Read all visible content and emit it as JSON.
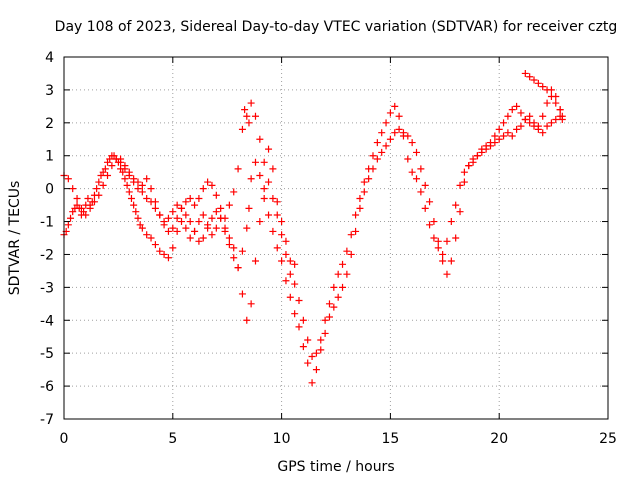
{
  "chart_data": {
    "type": "scatter",
    "title": "Day 108 of 2023, Sidereal Day-to-day VTEC variation (SDTVAR) for receiver cztg",
    "xlabel": "GPS time / hours",
    "ylabel": "SDTVAR / TECUs",
    "xlim": [
      0,
      25
    ],
    "ylim": [
      -7,
      4
    ],
    "xticks": [
      0,
      5,
      10,
      15,
      20,
      25
    ],
    "yticks": [
      -7,
      -6,
      -5,
      -4,
      -3,
      -2,
      -1,
      0,
      1,
      2,
      3,
      4
    ],
    "grid": true,
    "legend": "none",
    "marker": "+",
    "color": "#ff0000",
    "series": [
      {
        "x": [
          0.0,
          0.1,
          0.2,
          0.3,
          0.4,
          0.5,
          0.6,
          0.7,
          0.8,
          0.9,
          1.0,
          1.1,
          1.2,
          1.3,
          1.4,
          1.5,
          1.6,
          1.7,
          1.8,
          1.9,
          2.0,
          2.1,
          2.2,
          2.3,
          2.4,
          2.5,
          2.6,
          2.7,
          2.8,
          2.9,
          3.0,
          3.1,
          3.2,
          3.3,
          3.4,
          3.5,
          3.6,
          3.8,
          4.0,
          4.2,
          4.4,
          4.6,
          4.8,
          5.0,
          5.2,
          5.4,
          5.6,
          5.8,
          6.0,
          6.2,
          6.4,
          6.6,
          6.8,
          7.0,
          7.2,
          7.4,
          7.6,
          7.8,
          8.0,
          8.2,
          8.4,
          8.5,
          8.6,
          8.8,
          9.0,
          9.2,
          9.4,
          9.6,
          9.8,
          10.0,
          10.2,
          10.4,
          10.6,
          10.8,
          11.0,
          11.2,
          11.4,
          11.6,
          11.8,
          12.0,
          12.2,
          12.4,
          12.6,
          12.8,
          13.0,
          13.2,
          13.4,
          13.6,
          13.8,
          14.0,
          14.2,
          14.4,
          14.6,
          14.8,
          15.0,
          15.2,
          15.4,
          15.6,
          15.8,
          16.0,
          16.2,
          16.4,
          16.6,
          16.8,
          17.0,
          17.2,
          17.4,
          17.6,
          17.8,
          18.0,
          18.2,
          18.4,
          18.6,
          18.8,
          19.0,
          19.2,
          19.4,
          19.6,
          19.8,
          20.0,
          20.2,
          20.4,
          20.6,
          20.8,
          21.0,
          21.2,
          21.4,
          21.6,
          21.8,
          22.0,
          22.2,
          22.4,
          22.6,
          22.8,
          22.9
        ],
        "y": [
          -1.4,
          -1.3,
          -1.1,
          -0.9,
          -0.7,
          -0.6,
          -0.5,
          -0.6,
          -0.8,
          -0.7,
          -0.5,
          -0.3,
          -0.5,
          -0.4,
          -0.2,
          0.0,
          0.2,
          0.4,
          0.5,
          0.6,
          0.8,
          0.9,
          1.0,
          1.0,
          0.9,
          0.8,
          0.6,
          0.5,
          0.3,
          0.1,
          -0.1,
          -0.3,
          -0.5,
          -0.7,
          -0.9,
          -1.1,
          -1.2,
          -1.4,
          -1.5,
          -1.7,
          -1.9,
          -2.0,
          -2.1,
          -1.8,
          -1.3,
          -1.0,
          -1.2,
          -1.5,
          -1.3,
          -1.0,
          -0.8,
          -1.1,
          -1.4,
          -1.2,
          -0.9,
          -1.3,
          -1.7,
          -2.1,
          -2.4,
          -1.9,
          -1.2,
          -0.6,
          0.3,
          0.8,
          0.4,
          -0.3,
          -0.8,
          -1.3,
          -1.8,
          -2.2,
          -2.8,
          -3.3,
          -3.8,
          -4.2,
          -4.8,
          -5.3,
          -5.9,
          -5.5,
          -4.9,
          -4.4,
          -3.9,
          -3.6,
          -3.3,
          -3.0,
          -2.6,
          -2.0,
          -1.3,
          -0.6,
          -0.1,
          0.3,
          0.6,
          0.9,
          1.1,
          1.3,
          1.5,
          1.7,
          1.8,
          1.7,
          1.6,
          1.4,
          1.1,
          0.6,
          0.1,
          -0.4,
          -1.0,
          -1.6,
          -2.2,
          -2.6,
          -2.2,
          -1.5,
          -0.7,
          0.2,
          0.7,
          0.9,
          1.0,
          1.1,
          1.2,
          1.3,
          1.4,
          1.5,
          1.6,
          1.7,
          1.6,
          1.8,
          1.9,
          2.1,
          2.0,
          1.9,
          1.8,
          1.7,
          1.9,
          2.0,
          2.1,
          2.2,
          2.1
        ]
      },
      {
        "x": [
          0.0,
          0.2,
          0.4,
          0.6,
          0.8,
          1.0,
          1.2,
          1.4,
          1.6,
          1.8,
          2.0,
          2.2,
          2.4,
          2.6,
          2.8,
          3.0,
          3.2,
          3.4,
          3.6,
          3.8,
          4.0,
          4.2,
          4.4,
          4.6,
          4.8,
          5.0,
          5.2,
          5.4,
          5.6,
          5.8,
          6.0,
          6.2,
          6.4,
          6.6,
          6.8,
          7.0,
          7.2,
          7.4,
          7.6,
          7.8,
          8.0,
          8.2,
          8.4,
          8.6,
          8.8,
          9.0,
          9.2,
          9.4,
          9.6,
          9.8,
          10.0,
          10.2,
          10.4,
          10.6,
          10.8,
          11.0,
          11.2,
          11.4,
          11.6,
          11.8,
          12.0,
          12.2,
          12.4,
          12.6,
          12.8,
          13.0,
          13.2,
          13.4,
          13.6,
          13.8,
          14.0,
          14.2,
          14.4,
          14.6,
          14.8,
          15.0,
          15.2,
          15.4,
          15.6,
          15.8,
          16.0,
          16.2,
          16.4,
          16.6,
          16.8,
          17.0,
          17.2,
          17.4,
          17.6,
          17.8,
          18.0,
          18.2,
          18.4,
          18.6,
          18.8,
          19.0,
          19.2,
          19.4,
          19.6,
          19.8,
          20.0,
          20.2,
          20.4,
          20.6,
          20.8,
          21.0,
          21.2,
          21.4,
          21.6,
          21.8,
          22.0,
          22.2,
          22.4,
          22.6,
          22.8
        ],
        "y": [
          0.4,
          0.3,
          0.0,
          -0.3,
          -0.6,
          -0.8,
          -0.6,
          -0.4,
          -0.2,
          0.1,
          0.4,
          0.7,
          0.9,
          0.8,
          0.6,
          0.4,
          0.2,
          0.0,
          -0.1,
          -0.3,
          -0.4,
          -0.6,
          -0.8,
          -1.0,
          -0.9,
          -0.7,
          -0.5,
          -0.6,
          -0.8,
          -1.0,
          -1.3,
          -1.6,
          -1.5,
          -1.2,
          -0.9,
          -0.7,
          -0.9,
          -1.2,
          -1.5,
          -1.8,
          -2.4,
          -3.2,
          -4.0,
          -3.5,
          -2.2,
          -1.0,
          0.0,
          1.2,
          0.6,
          -0.4,
          -1.0,
          -1.6,
          -2.2,
          -2.9,
          -3.4,
          -4.0,
          -4.6,
          -5.1,
          -5.0,
          -4.6,
          -4.0,
          -3.5,
          -3.0,
          -2.6,
          -2.3,
          -1.9,
          -1.4,
          -0.8,
          -0.3,
          0.2,
          0.6,
          1.0,
          1.4,
          1.7,
          2.0,
          2.3,
          2.5,
          2.2,
          1.6,
          0.9,
          0.5,
          0.3,
          -0.1,
          -0.6,
          -1.1,
          -1.5,
          -1.8,
          -2.0,
          -1.6,
          -1.0,
          -0.5,
          0.1,
          0.5,
          0.7,
          0.8,
          1.0,
          1.2,
          1.3,
          1.4,
          1.6,
          1.8,
          2.0,
          2.2,
          2.4,
          2.5,
          2.3,
          2.1,
          2.2,
          2.0,
          1.9,
          2.2,
          2.6,
          3.0,
          2.8,
          2.4
        ]
      },
      {
        "x": [
          2.6,
          2.8,
          3.0,
          3.2,
          3.4,
          3.6,
          3.8,
          4.0,
          4.2,
          4.4,
          4.6,
          4.8,
          5.0,
          5.2,
          5.4,
          5.6,
          5.8,
          6.0,
          6.2,
          6.4,
          6.6,
          6.8,
          7.0,
          7.2,
          7.4,
          7.6,
          7.8,
          8.0,
          8.2,
          8.3,
          8.4,
          8.5,
          8.6,
          8.8,
          9.0,
          9.2,
          9.4,
          9.6,
          9.8,
          10.0,
          10.2,
          10.4,
          10.6,
          21.2,
          21.4,
          21.6,
          21.8,
          22.0,
          22.2,
          22.4,
          22.6,
          22.8,
          22.9
        ],
        "y": [
          0.9,
          0.7,
          0.5,
          0.3,
          0.2,
          0.1,
          0.3,
          0.0,
          -0.4,
          -0.8,
          -1.1,
          -1.3,
          -1.2,
          -0.9,
          -0.6,
          -0.4,
          -0.3,
          -0.5,
          -0.3,
          0.0,
          0.2,
          0.1,
          -0.2,
          -0.6,
          -0.9,
          -0.5,
          -0.1,
          0.6,
          1.8,
          2.4,
          2.2,
          2.0,
          2.6,
          2.2,
          1.5,
          0.8,
          0.2,
          -0.3,
          -0.8,
          -1.4,
          -2.0,
          -2.6,
          -2.3,
          3.5,
          3.4,
          3.3,
          3.2,
          3.1,
          3.0,
          2.8,
          2.6,
          2.4,
          2.2
        ]
      }
    ]
  }
}
